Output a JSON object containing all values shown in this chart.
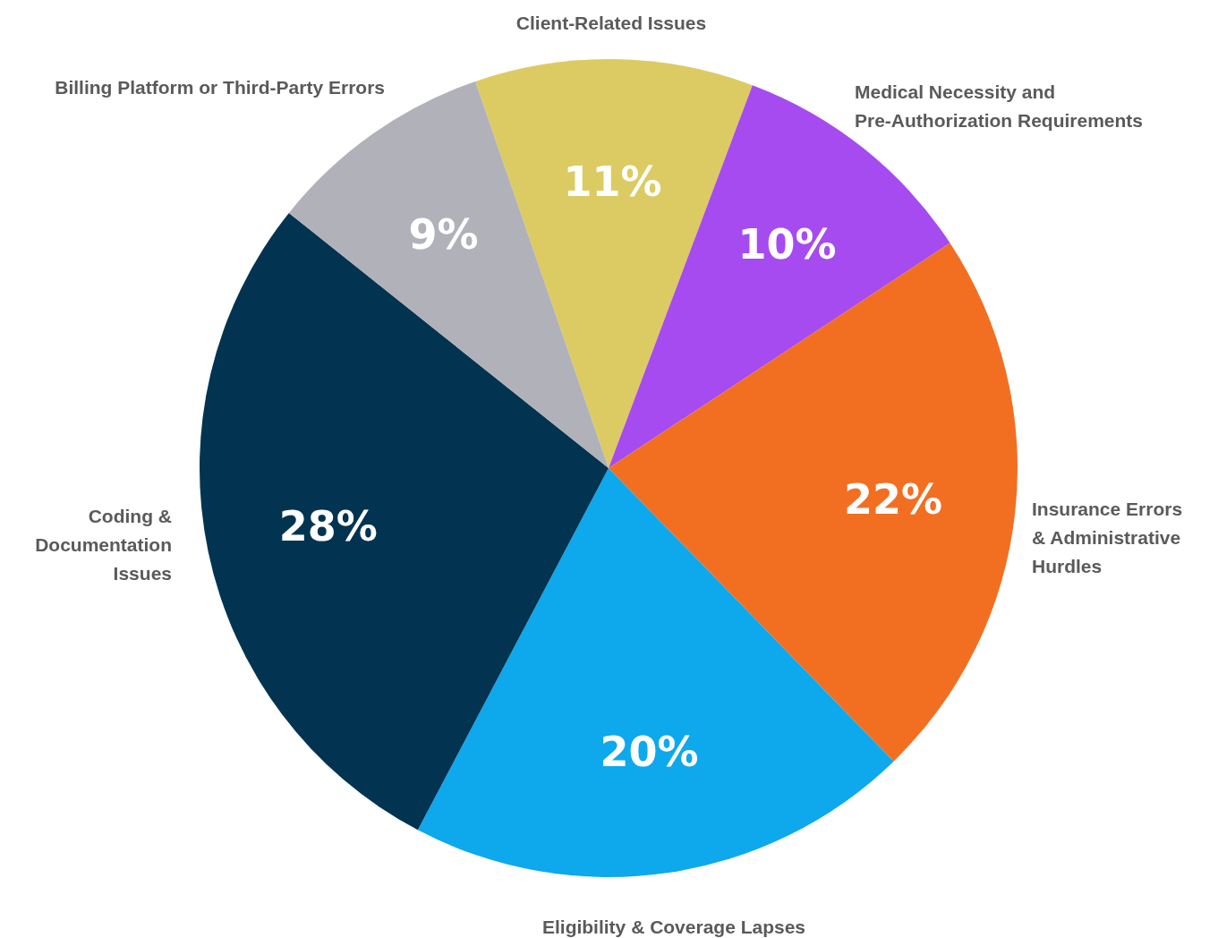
{
  "chart_data": {
    "type": "pie",
    "categories": [
      "Client-Related Issues",
      "Medical Necessity and\nPre-Authorization Requirements",
      "Insurance Errors\n& Administrative\nHurdles",
      "Eligibility & Coverage Lapses",
      "Coding &\nDocumentation\nIssues",
      "Billing Platform or Third-Party Errors"
    ],
    "values": [
      11,
      10,
      22,
      20,
      28,
      9
    ],
    "colors": [
      "#dccb62",
      "#a64bf0",
      "#f26f22",
      "#0ea8ec",
      "#023451",
      "#b1b2b9"
    ],
    "value_labels": [
      "11%",
      "10%",
      "22%",
      "20%",
      "28%",
      "9%"
    ]
  }
}
